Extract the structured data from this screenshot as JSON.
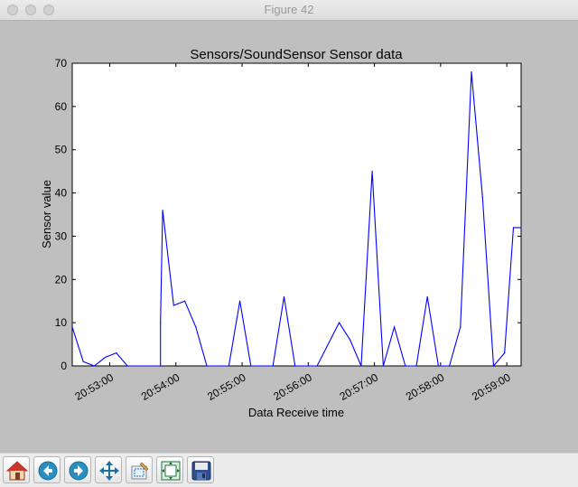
{
  "window": {
    "title": "Figure 42"
  },
  "chart_data": {
    "type": "line",
    "title": "Sensors/SoundSensor Sensor data",
    "xlabel": "Data Receive time",
    "ylabel": "Sensor value",
    "ylim": [
      0,
      70
    ],
    "yticks": [
      "0",
      "10",
      "20",
      "30",
      "40",
      "50",
      "60",
      "70"
    ],
    "xticks": [
      "20:53:00",
      "20:54:00",
      "20:55:00",
      "20:56:00",
      "20:57:00",
      "20:58:00",
      "20:59:00"
    ],
    "xlim": [
      "20:52:26",
      "20:59:13"
    ],
    "series_color": "#0000ff",
    "series": [
      {
        "x": [
          "20:52:26",
          "20:52:36",
          "20:52:46",
          "20:52:56",
          "20:53:06",
          "20:53:16",
          "20:53:46",
          "20:53:46",
          "20:53:48",
          "20:53:58",
          "20:54:08",
          "20:54:18",
          "20:54:28",
          "20:54:48",
          "20:54:58",
          "20:55:08",
          "20:55:28",
          "20:55:38",
          "20:55:48",
          "20:56:08",
          "20:56:28",
          "20:56:38",
          "20:56:48",
          "20:56:58",
          "20:57:08",
          "20:57:18",
          "20:57:28",
          "20:57:38",
          "20:57:48",
          "20:57:58",
          "20:58:08",
          "20:58:18",
          "20:58:28",
          "20:58:38",
          "20:58:48",
          "20:58:58",
          "20:59:06",
          "20:59:13"
        ],
        "values": [
          9,
          1,
          0,
          2,
          3,
          0,
          0,
          10,
          36,
          14,
          15,
          9,
          0,
          0,
          15,
          0,
          0,
          16,
          0,
          0,
          10,
          6,
          0,
          45,
          0,
          9,
          0,
          0,
          16,
          0,
          0,
          9,
          68,
          39,
          0,
          3,
          32,
          32
        ]
      }
    ]
  },
  "toolbar": {
    "buttons": [
      {
        "icon": "home-icon"
      },
      {
        "icon": "back-arrow-icon"
      },
      {
        "icon": "forward-arrow-icon"
      },
      {
        "icon": "pan-icon"
      },
      {
        "icon": "zoom-rect-icon"
      },
      {
        "icon": "subplots-config-icon"
      },
      {
        "icon": "save-icon"
      }
    ]
  }
}
